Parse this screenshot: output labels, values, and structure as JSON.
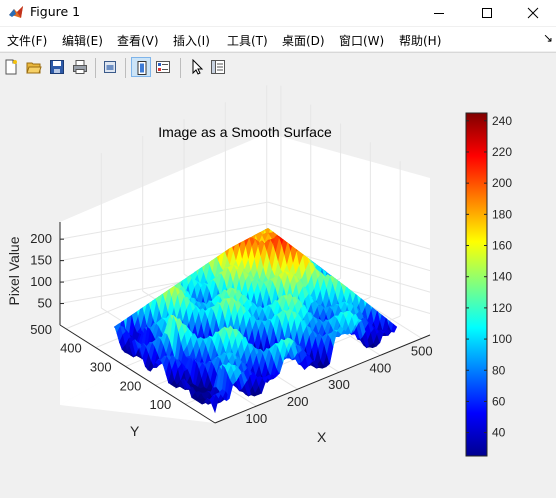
{
  "window": {
    "title": "Figure 1",
    "icon": "matlab-icon",
    "controls": [
      "minimize-icon",
      "maximize-icon",
      "close-icon"
    ]
  },
  "menu": {
    "items": [
      {
        "label": "文件(F)"
      },
      {
        "label": "编辑(E)"
      },
      {
        "label": "查看(V)"
      },
      {
        "label": "插入(I)"
      },
      {
        "label": "工具(T)"
      },
      {
        "label": "桌面(D)"
      },
      {
        "label": "窗口(W)"
      },
      {
        "label": "帮助(H)"
      }
    ],
    "overflow_icon": "dock-arrow-icon"
  },
  "toolbar": {
    "tools": [
      "new-figure-icon",
      "open-file-icon",
      "save-icon",
      "print-icon",
      "print-preview-icon",
      "link-plot-icon",
      "insert-colorbar-icon",
      "edit-plot-icon",
      "plot-tools-icon"
    ],
    "active_tool": "link-plot-icon"
  },
  "chart_data": {
    "type": "surface",
    "title": "Image as a Smooth Surface",
    "xlabel": "X",
    "ylabel": "Y",
    "zlabel": "Pixel Value",
    "x_ticks": [
      100,
      200,
      300,
      400,
      500
    ],
    "y_ticks": [
      100,
      200,
      300,
      400,
      500
    ],
    "z_ticks": [
      50,
      100,
      150,
      200
    ],
    "colormap": "jet",
    "colorbar": {
      "ticks": [
        40,
        60,
        80,
        100,
        120,
        140,
        160,
        180,
        200,
        220,
        240
      ],
      "range": [
        25,
        245
      ],
      "placement": "right"
    },
    "grid": true
  }
}
